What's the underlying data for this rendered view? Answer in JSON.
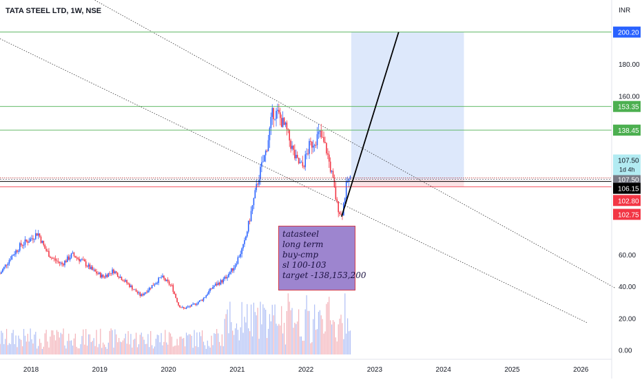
{
  "header": {
    "symbol": "TATA STEEL LTD, 1W, NSE",
    "currency": "INR"
  },
  "note": {
    "lines": [
      "tatasteel",
      "long term",
      "buy-cmp",
      "sl 100-103",
      "target -138,153,200"
    ]
  },
  "colors": {
    "up": "#2962ff",
    "down": "#f23645",
    "target_line": "#4caf50",
    "stop_line": "#f23645",
    "trend_line": "#000000",
    "projection_zone": "#dde8fb",
    "note_fill": "#9d85cf"
  },
  "chart_data": {
    "type": "candlestick",
    "title": "TATA STEEL LTD, 1W, NSE",
    "xlabel": "",
    "ylabel": "",
    "ylim": [
      -5,
      210
    ],
    "y_ticks": [
      "0.00",
      "20.00",
      "40.00",
      "60.00",
      "160.00",
      "180.00"
    ],
    "x_ticks": [
      "2018",
      "2019",
      "2020",
      "2021",
      "2022",
      "2023",
      "2024",
      "2025",
      "2026"
    ],
    "xlim": [
      2017.55,
      2026.45
    ],
    "grid": false,
    "price_series_approx": [
      {
        "x": 2017.55,
        "y": 48
      },
      {
        "x": 2017.7,
        "y": 58
      },
      {
        "x": 2017.85,
        "y": 66
      },
      {
        "x": 2018.0,
        "y": 70
      },
      {
        "x": 2018.1,
        "y": 74
      },
      {
        "x": 2018.2,
        "y": 64
      },
      {
        "x": 2018.3,
        "y": 58
      },
      {
        "x": 2018.45,
        "y": 54
      },
      {
        "x": 2018.6,
        "y": 60
      },
      {
        "x": 2018.75,
        "y": 56
      },
      {
        "x": 2018.9,
        "y": 50
      },
      {
        "x": 2019.05,
        "y": 46
      },
      {
        "x": 2019.2,
        "y": 50
      },
      {
        "x": 2019.35,
        "y": 44
      },
      {
        "x": 2019.5,
        "y": 38
      },
      {
        "x": 2019.6,
        "y": 34
      },
      {
        "x": 2019.75,
        "y": 40
      },
      {
        "x": 2019.9,
        "y": 46
      },
      {
        "x": 2020.05,
        "y": 40
      },
      {
        "x": 2020.15,
        "y": 28
      },
      {
        "x": 2020.22,
        "y": 26
      },
      {
        "x": 2020.35,
        "y": 28
      },
      {
        "x": 2020.5,
        "y": 32
      },
      {
        "x": 2020.65,
        "y": 40
      },
      {
        "x": 2020.8,
        "y": 44
      },
      {
        "x": 2020.95,
        "y": 52
      },
      {
        "x": 2021.1,
        "y": 66
      },
      {
        "x": 2021.22,
        "y": 90
      },
      {
        "x": 2021.32,
        "y": 110
      },
      {
        "x": 2021.42,
        "y": 125
      },
      {
        "x": 2021.52,
        "y": 150
      },
      {
        "x": 2021.6,
        "y": 148
      },
      {
        "x": 2021.72,
        "y": 138
      },
      {
        "x": 2021.85,
        "y": 120
      },
      {
        "x": 2021.95,
        "y": 115
      },
      {
        "x": 2022.05,
        "y": 128
      },
      {
        "x": 2022.2,
        "y": 136
      },
      {
        "x": 2022.3,
        "y": 126
      },
      {
        "x": 2022.38,
        "y": 110
      },
      {
        "x": 2022.45,
        "y": 92
      },
      {
        "x": 2022.52,
        "y": 84
      },
      {
        "x": 2022.6,
        "y": 106
      },
      {
        "x": 2022.66,
        "y": 107.5
      }
    ],
    "horizontal_levels": [
      {
        "value": 200.2,
        "label": "200.20",
        "color": "#4caf50",
        "tag_color": "#2962ff"
      },
      {
        "value": 153.35,
        "label": "153.35",
        "color": "#4caf50",
        "tag_color": "#4caf50"
      },
      {
        "value": 138.45,
        "label": "138.45",
        "color": "#4caf50",
        "tag_color": "#4caf50"
      },
      {
        "value": 107.5,
        "label": "107.50",
        "color": "#787b86",
        "tag_color": "#787b86"
      },
      {
        "value": 106.15,
        "label": "106.15",
        "color": "#000000",
        "tag_color": "#000000"
      },
      {
        "value": 102.8,
        "label": "102.80",
        "color": "#f23645",
        "tag_color": "#f23645"
      },
      {
        "value": 102.75,
        "label": "102.75",
        "color": "#f23645",
        "tag_color": "#f23645"
      }
    ],
    "price_tag_extra": {
      "label": "107.50",
      "countdown": "1d 4h"
    },
    "trend_line": {
      "from": {
        "x": 2022.52,
        "y": 84
      },
      "to": {
        "x": 2023.35,
        "y": 200.2
      }
    },
    "projection_zone": {
      "x_from": 2022.66,
      "x_to": 2024.3,
      "y_from": 107.5,
      "y_to": 200.2
    },
    "stop_zone": {
      "x_from": 2022.66,
      "x_to": 2024.3,
      "y_from": 102.8,
      "y_to": 107.5
    },
    "dotted_channel": [
      {
        "from": {
          "x": 2018.9,
          "y": 221
        },
        "to": {
          "x": 2026.5,
          "y": 39
        }
      },
      {
        "from": {
          "x": 2017.55,
          "y": 196
        },
        "to": {
          "x": 2026.1,
          "y": 17
        }
      }
    ]
  }
}
